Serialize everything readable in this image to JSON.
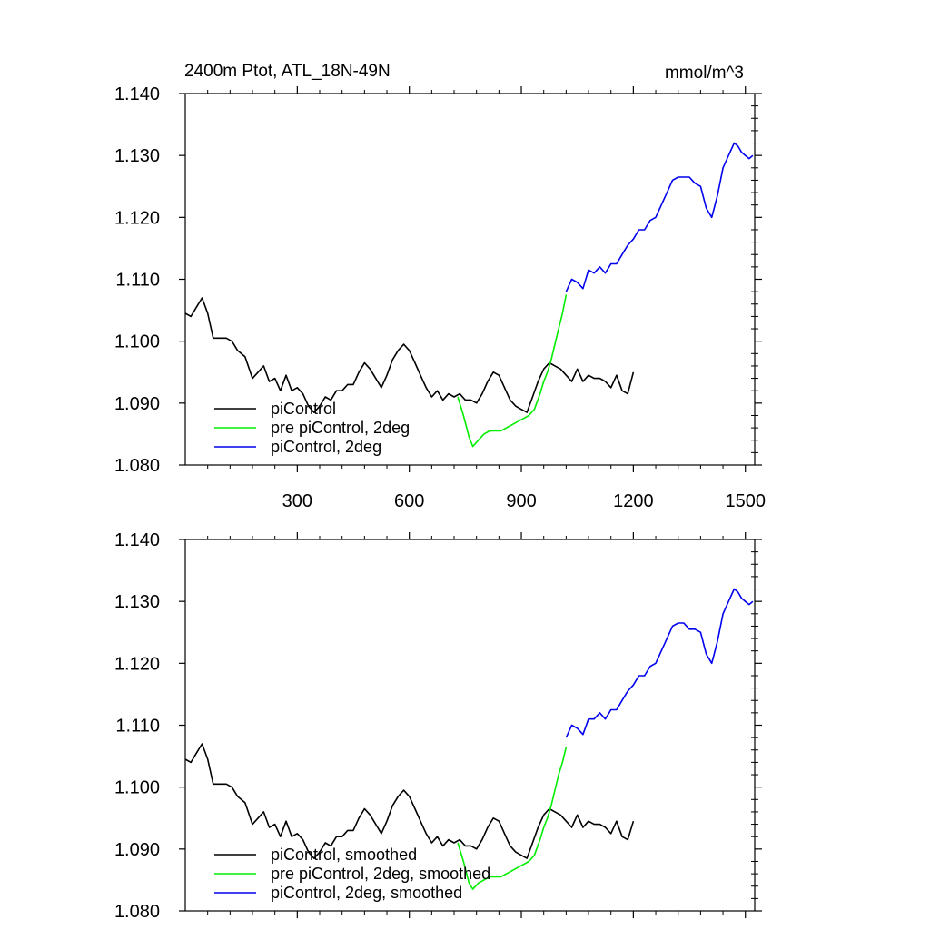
{
  "chart_data": [
    {
      "type": "line",
      "title": "2400m Ptot, ATL_18N-49N",
      "units": "mmol/m^3",
      "xlim": [
        0,
        1525
      ],
      "ylim": [
        1.08,
        1.14
      ],
      "xticks": [
        300,
        600,
        900,
        1200,
        1500
      ],
      "xtick_labels": [
        "300",
        "600",
        "900",
        "1200",
        "1500"
      ],
      "yticks": [
        1.08,
        1.09,
        1.1,
        1.11,
        1.12,
        1.13,
        1.14
      ],
      "ytick_labels": [
        "1.080",
        "1.090",
        "1.100",
        "1.110",
        "1.120",
        "1.130",
        "1.140"
      ],
      "legend_position": "bottom-left",
      "series": [
        {
          "name": "piControl",
          "color": "#000000",
          "x": [
            0,
            15,
            30,
            45,
            60,
            75,
            90,
            110,
            125,
            140,
            160,
            180,
            195,
            210,
            225,
            240,
            255,
            270,
            285,
            300,
            315,
            330,
            345,
            360,
            375,
            390,
            405,
            420,
            435,
            450,
            465,
            480,
            495,
            510,
            525,
            540,
            555,
            570,
            585,
            600,
            615,
            630,
            645,
            660,
            675,
            690,
            705,
            720,
            735,
            750,
            765,
            780,
            795,
            810,
            825,
            840,
            855,
            870,
            885,
            900,
            915,
            930,
            945,
            960,
            975,
            990,
            1005,
            1020,
            1035,
            1050,
            1065,
            1080,
            1095,
            1110,
            1125,
            1140,
            1155,
            1170,
            1185,
            1200
          ],
          "y": [
            1.1045,
            1.104,
            1.1055,
            1.107,
            1.1045,
            1.1005,
            1.1005,
            1.1005,
            1.1,
            1.0985,
            1.0975,
            1.094,
            1.095,
            1.096,
            1.0935,
            1.094,
            1.092,
            1.0945,
            1.092,
            1.0925,
            1.0915,
            1.0895,
            1.0885,
            1.0895,
            1.091,
            1.0905,
            1.092,
            1.092,
            1.093,
            1.093,
            1.095,
            1.0965,
            1.0955,
            1.094,
            1.0925,
            1.0945,
            1.097,
            1.0985,
            1.0995,
            1.0985,
            1.0965,
            1.0945,
            1.0925,
            1.091,
            1.092,
            1.0905,
            1.0915,
            1.091,
            1.0915,
            1.0905,
            1.0905,
            1.09,
            1.0915,
            1.0935,
            1.095,
            1.0945,
            1.0925,
            1.0905,
            1.0895,
            1.089,
            1.0885,
            1.091,
            1.0935,
            1.0955,
            1.0965,
            1.096,
            1.0955,
            1.0945,
            1.0935,
            1.0955,
            1.0935,
            1.0945,
            1.094,
            1.094,
            1.0935,
            1.0925,
            1.0945,
            1.092,
            1.0915,
            1.095
          ]
        },
        {
          "name": "pre piControl, 2deg",
          "color": "#00ee00",
          "x": [
            730,
            745,
            760,
            770,
            785,
            800,
            815,
            830,
            845,
            860,
            875,
            890,
            905,
            920,
            935,
            950,
            960,
            970,
            980,
            990,
            1000,
            1010,
            1020
          ],
          "y": [
            1.091,
            1.088,
            1.0845,
            1.083,
            1.084,
            1.085,
            1.0855,
            1.0855,
            1.0855,
            1.086,
            1.0865,
            1.087,
            1.0875,
            1.088,
            1.089,
            1.0915,
            1.0935,
            1.095,
            1.097,
            1.0995,
            1.102,
            1.1045,
            1.1075
          ]
        },
        {
          "name": "piControl, 2deg",
          "color": "#0000ee",
          "x": [
            1020,
            1035,
            1050,
            1065,
            1080,
            1095,
            1110,
            1125,
            1140,
            1155,
            1170,
            1185,
            1200,
            1215,
            1230,
            1245,
            1260,
            1275,
            1290,
            1305,
            1320,
            1335,
            1350,
            1365,
            1380,
            1395,
            1410,
            1425,
            1440,
            1455,
            1470,
            1480,
            1490,
            1500,
            1510,
            1520
          ],
          "y": [
            1.108,
            1.11,
            1.1095,
            1.1085,
            1.1115,
            1.111,
            1.112,
            1.111,
            1.1125,
            1.1125,
            1.114,
            1.1155,
            1.1165,
            1.118,
            1.118,
            1.1195,
            1.12,
            1.122,
            1.124,
            1.126,
            1.1265,
            1.1265,
            1.1265,
            1.1255,
            1.125,
            1.1215,
            1.12,
            1.1235,
            1.128,
            1.13,
            1.132,
            1.1315,
            1.1305,
            1.13,
            1.1295,
            1.13
          ]
        }
      ]
    },
    {
      "type": "line",
      "title": "",
      "xlim": [
        0,
        1525
      ],
      "ylim": [
        1.08,
        1.14
      ],
      "xticks": [
        300,
        600,
        900,
        1200,
        1500
      ],
      "yticks": [
        1.08,
        1.09,
        1.1,
        1.11,
        1.12,
        1.13,
        1.14
      ],
      "ytick_labels": [
        "1.080",
        "1.090",
        "1.100",
        "1.110",
        "1.120",
        "1.130",
        "1.140"
      ],
      "legend_position": "bottom-left",
      "series": [
        {
          "name": "piControl, smoothed",
          "color": "#000000",
          "x": [
            0,
            15,
            30,
            45,
            60,
            75,
            90,
            110,
            125,
            140,
            160,
            180,
            195,
            210,
            225,
            240,
            255,
            270,
            285,
            300,
            315,
            330,
            345,
            360,
            375,
            390,
            405,
            420,
            435,
            450,
            465,
            480,
            495,
            510,
            525,
            540,
            555,
            570,
            585,
            600,
            615,
            630,
            645,
            660,
            675,
            690,
            705,
            720,
            735,
            750,
            765,
            780,
            795,
            810,
            825,
            840,
            855,
            870,
            885,
            900,
            915,
            930,
            945,
            960,
            975,
            990,
            1005,
            1020,
            1035,
            1050,
            1065,
            1080,
            1095,
            1110,
            1125,
            1140,
            1155,
            1170,
            1185,
            1200
          ],
          "y": [
            1.1045,
            1.104,
            1.1055,
            1.107,
            1.1045,
            1.1005,
            1.1005,
            1.1005,
            1.1,
            1.0985,
            1.0975,
            1.094,
            1.095,
            1.096,
            1.0935,
            1.094,
            1.092,
            1.0945,
            1.092,
            1.0925,
            1.0915,
            1.0895,
            1.0885,
            1.0895,
            1.091,
            1.0905,
            1.092,
            1.092,
            1.093,
            1.093,
            1.095,
            1.0965,
            1.0955,
            1.094,
            1.0925,
            1.0945,
            1.097,
            1.0985,
            1.0995,
            1.0985,
            1.0965,
            1.0945,
            1.0925,
            1.091,
            1.092,
            1.0905,
            1.0915,
            1.091,
            1.0915,
            1.0905,
            1.0905,
            1.09,
            1.0915,
            1.0935,
            1.095,
            1.0945,
            1.0925,
            1.0905,
            1.0895,
            1.089,
            1.0885,
            1.091,
            1.0935,
            1.0955,
            1.0965,
            1.096,
            1.0955,
            1.0945,
            1.0935,
            1.0955,
            1.0935,
            1.0945,
            1.094,
            1.094,
            1.0935,
            1.0925,
            1.0945,
            1.092,
            1.0915,
            1.0945
          ]
        },
        {
          "name": "pre piControl, 2deg, smoothed",
          "color": "#00ee00",
          "x": [
            730,
            745,
            760,
            770,
            785,
            800,
            815,
            830,
            845,
            860,
            875,
            890,
            905,
            920,
            935,
            950,
            960,
            970,
            980,
            990,
            1000,
            1010,
            1020
          ],
          "y": [
            1.091,
            1.088,
            1.0845,
            1.0835,
            1.0845,
            1.085,
            1.0855,
            1.0855,
            1.0855,
            1.086,
            1.0865,
            1.087,
            1.0875,
            1.088,
            1.089,
            1.0915,
            1.0935,
            1.095,
            1.097,
            1.0995,
            1.102,
            1.104,
            1.1065
          ]
        },
        {
          "name": "piControl, 2deg, smoothed",
          "color": "#0000ee",
          "x": [
            1020,
            1035,
            1050,
            1065,
            1080,
            1095,
            1110,
            1125,
            1140,
            1155,
            1170,
            1185,
            1200,
            1215,
            1230,
            1245,
            1260,
            1275,
            1290,
            1305,
            1320,
            1335,
            1350,
            1365,
            1380,
            1395,
            1410,
            1425,
            1440,
            1455,
            1470,
            1480,
            1490,
            1500,
            1510,
            1520
          ],
          "y": [
            1.108,
            1.11,
            1.1095,
            1.1085,
            1.111,
            1.111,
            1.112,
            1.111,
            1.1125,
            1.1125,
            1.114,
            1.1155,
            1.1165,
            1.118,
            1.118,
            1.1195,
            1.12,
            1.122,
            1.124,
            1.126,
            1.1265,
            1.1265,
            1.1255,
            1.1255,
            1.125,
            1.1215,
            1.12,
            1.1235,
            1.128,
            1.13,
            1.132,
            1.1315,
            1.1305,
            1.13,
            1.1295,
            1.13
          ]
        }
      ]
    }
  ]
}
